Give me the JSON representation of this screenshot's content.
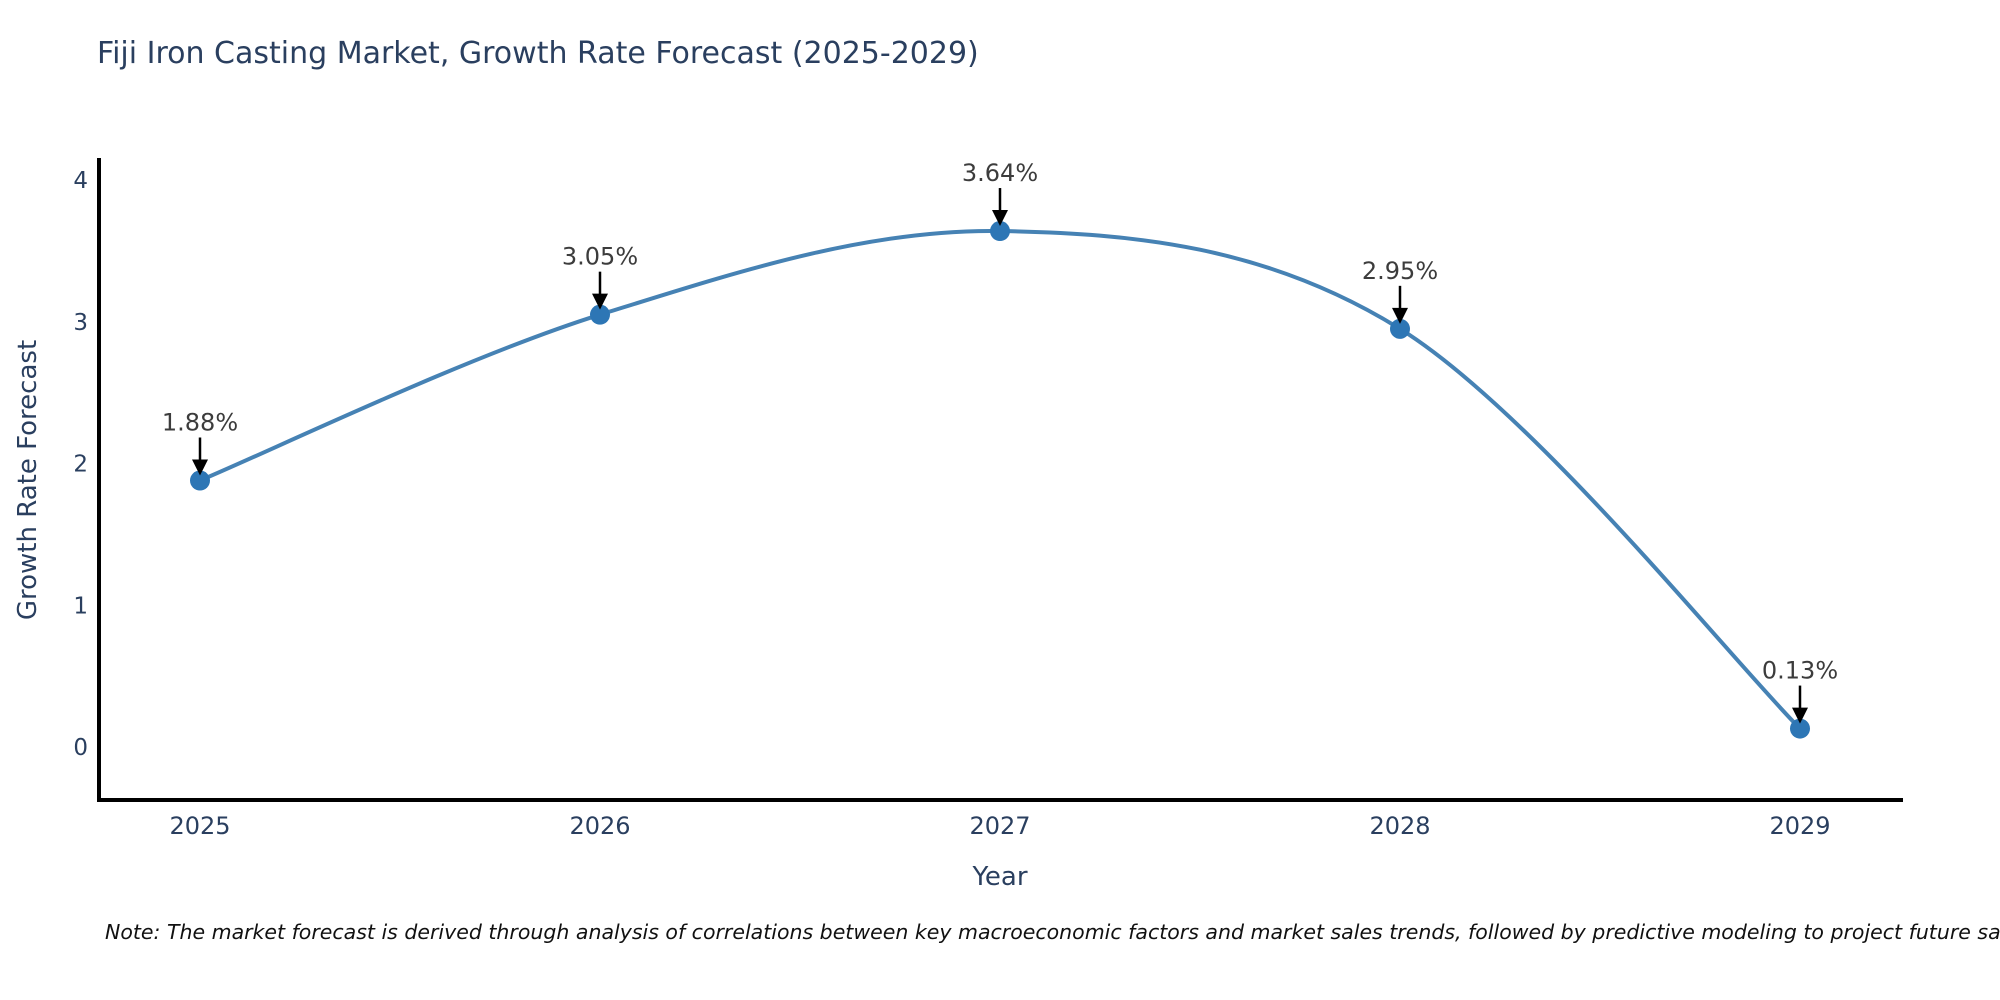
{
  "chart_data": {
    "type": "line",
    "title": "Fiji Iron Casting Market, Growth Rate Forecast (2025-2029)",
    "xlabel": "Year",
    "ylabel": "Growth Rate Forecast",
    "categories": [
      "2025",
      "2026",
      "2027",
      "2028",
      "2029"
    ],
    "values": [
      1.88,
      3.05,
      3.64,
      2.95,
      0.13
    ],
    "point_labels": [
      "1.88%",
      "3.05%",
      "3.64%",
      "2.95%",
      "0.13%"
    ],
    "yticks": [
      0,
      1,
      2,
      3,
      4
    ],
    "ylim": [
      0,
      4.2
    ],
    "line_shape": "spline",
    "grid": false,
    "legend": "none",
    "colors": {
      "line": "#4682b4",
      "marker": "#2d76b5",
      "axis": "#000000",
      "arrow": "#000000",
      "title": "#2a3f5f",
      "tick": "#2a3f5f",
      "annotation": "#3c3c3c"
    }
  },
  "note": {
    "text": "Note: The market forecast is derived through analysis of correlations between key macroeconomic factors and market sales trends, followed by predictive modeling to project future sales."
  }
}
